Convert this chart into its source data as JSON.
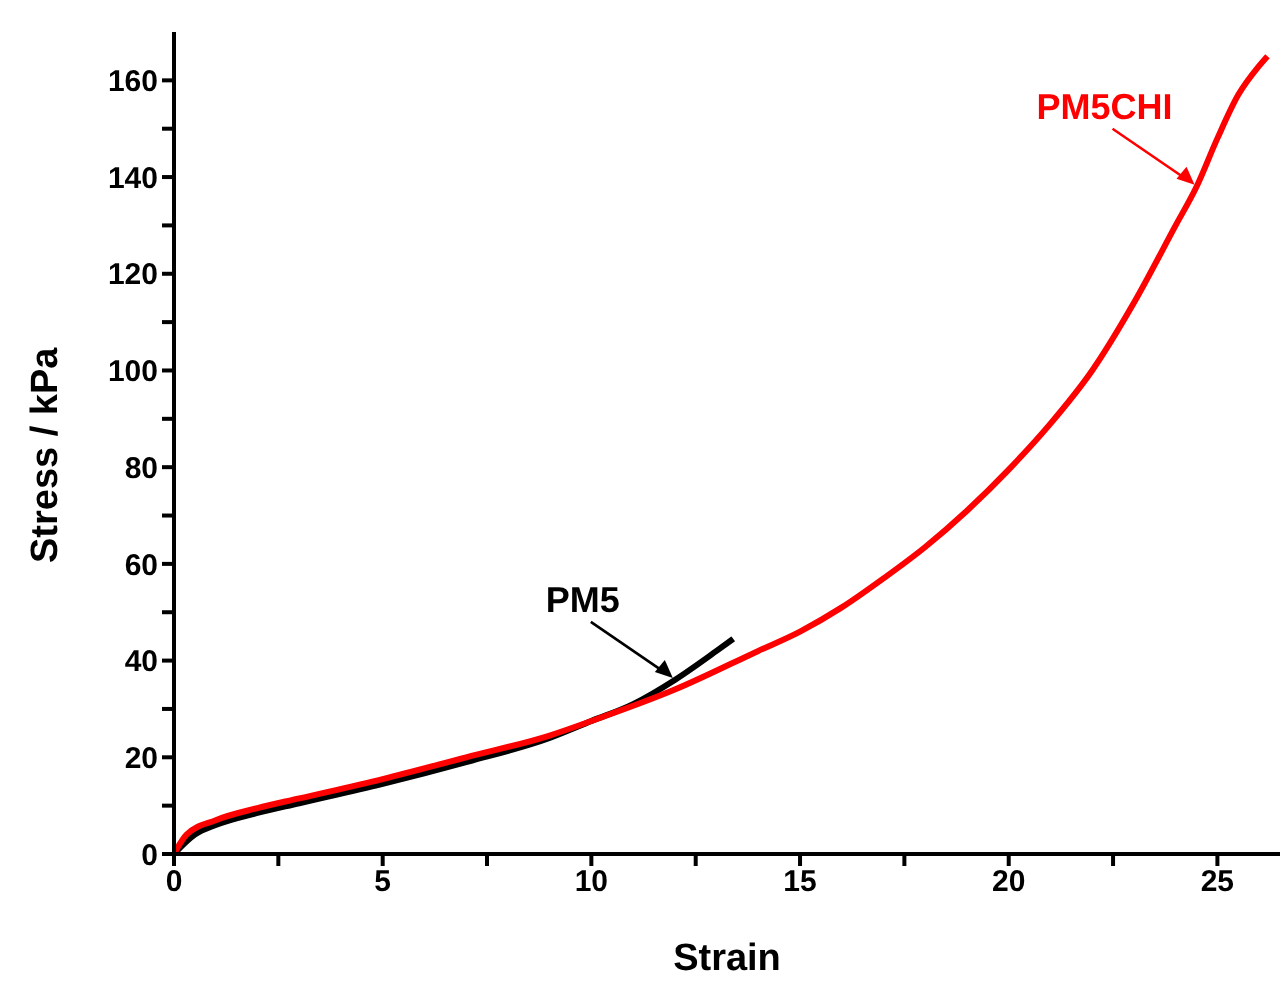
{
  "chart_data": {
    "type": "line",
    "xlabel": "Strain",
    "ylabel": "Stress / kPa",
    "xlim": [
      0,
      26.5
    ],
    "ylim": [
      0,
      170
    ],
    "xticks": [
      0,
      {
        "value": 2.5,
        "label": null
      },
      5,
      {
        "value": 7.5,
        "label": null
      },
      10,
      {
        "value": 12.5,
        "label": null
      },
      15,
      {
        "value": 17.5,
        "label": null
      },
      20,
      {
        "value": 22.5,
        "label": null
      },
      25
    ],
    "yticks": [
      0,
      {
        "value": 10,
        "label": null
      },
      20,
      {
        "value": 30,
        "label": null
      },
      40,
      {
        "value": 50,
        "label": null
      },
      60,
      {
        "value": 70,
        "label": null
      },
      80,
      {
        "value": 90,
        "label": null
      },
      100,
      {
        "value": 110,
        "label": null
      },
      120,
      {
        "value": 130,
        "label": null
      },
      140,
      {
        "value": 150,
        "label": null
      },
      160
    ],
    "marker": "none",
    "line_style": "solid",
    "series": [
      {
        "name": "PM5",
        "color": "#000000",
        "x": [
          0,
          0.5,
          1,
          2,
          3,
          5,
          7,
          9,
          10,
          11,
          12,
          13,
          13.4
        ],
        "values": [
          0,
          4,
          6,
          8.5,
          10.5,
          14.5,
          19,
          24,
          27.5,
          31,
          36,
          42,
          44.5
        ]
      },
      {
        "name": "PM5CHI",
        "color": "#ff0000",
        "x": [
          0,
          0.3,
          1,
          2,
          3,
          5,
          7,
          9,
          10,
          12,
          14,
          15,
          16,
          17,
          18,
          19,
          20,
          21,
          22,
          23,
          24,
          24.5,
          25,
          25.5,
          26,
          26.2
        ],
        "values": [
          0,
          4,
          7,
          9.5,
          11.5,
          15.5,
          20,
          24.5,
          27.5,
          34,
          42,
          46,
          51,
          57,
          63.5,
          71,
          79.5,
          89,
          100,
          114,
          130,
          138,
          148,
          157,
          163,
          165
        ]
      }
    ]
  }
}
